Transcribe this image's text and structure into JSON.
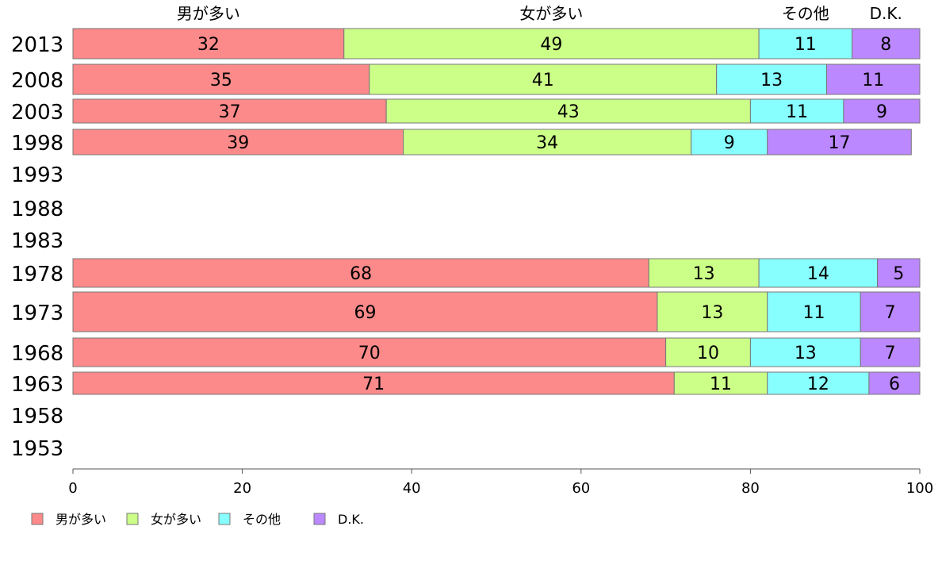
{
  "chart_data": {
    "type": "bar",
    "orientation": "horizontal",
    "stacked": true,
    "categories": [
      "2013",
      "2008",
      "2003",
      "1998",
      "1993",
      "1988",
      "1983",
      "1978",
      "1973",
      "1968",
      "1963",
      "1958",
      "1953"
    ],
    "series": [
      {
        "name": "男が多い",
        "color": "#fd8a8a",
        "values": [
          32,
          35,
          37,
          39,
          null,
          null,
          null,
          68,
          69,
          70,
          71,
          null,
          null
        ]
      },
      {
        "name": "女が多い",
        "color": "#ccff88",
        "values": [
          49,
          41,
          43,
          34,
          null,
          null,
          null,
          13,
          13,
          10,
          11,
          null,
          null
        ]
      },
      {
        "name": "その他",
        "color": "#88ffff",
        "values": [
          11,
          13,
          11,
          9,
          null,
          null,
          null,
          14,
          11,
          13,
          12,
          null,
          null
        ]
      },
      {
        "name": "D.K.",
        "color": "#bb88ff",
        "values": [
          8,
          11,
          9,
          17,
          null,
          null,
          null,
          5,
          7,
          7,
          6,
          null,
          null
        ]
      }
    ],
    "top_labels": [
      "男が多い",
      "女が多い",
      "その他",
      "D.K."
    ],
    "xlim": [
      0,
      100
    ],
    "xticks": [
      0,
      20,
      40,
      60,
      80,
      100
    ],
    "grid": false,
    "legend": "bottom-left"
  }
}
